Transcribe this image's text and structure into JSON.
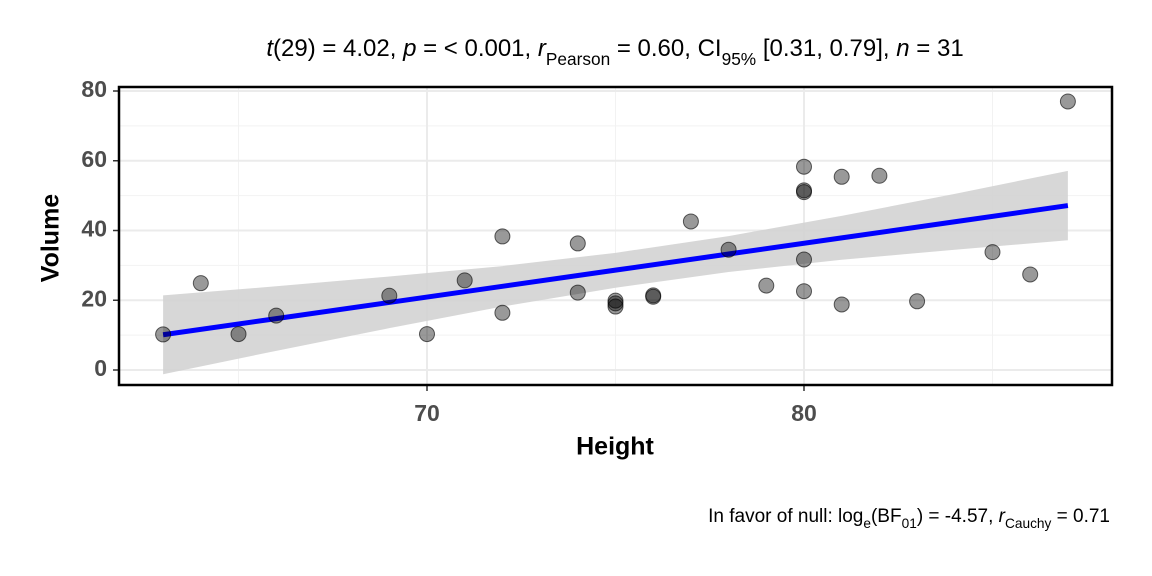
{
  "chart_data": {
    "type": "scatter",
    "title_parts": [
      {
        "text": "t",
        "italic": true
      },
      {
        "text": "(29) = 4.02, "
      },
      {
        "text": "p",
        "italic": true
      },
      {
        "text": " = < 0.001, "
      },
      {
        "text": "r",
        "italic": true
      },
      {
        "text": "Pearson",
        "sub": true
      },
      {
        "text": " = 0.60, CI"
      },
      {
        "text": "95%",
        "sub": true
      },
      {
        "text": " [0.31, 0.79], "
      },
      {
        "text": "n",
        "italic": true
      },
      {
        "text": " = 31"
      }
    ],
    "caption_parts": [
      {
        "text": "In favor of null: log"
      },
      {
        "text": "e",
        "sub": true
      },
      {
        "text": "(BF"
      },
      {
        "text": "01",
        "sub": true
      },
      {
        "text": ") = -4.57, "
      },
      {
        "text": "r",
        "italic": true
      },
      {
        "text": "Cauchy",
        "sub": true
      },
      {
        "text": " = 0.71"
      }
    ],
    "x_label": "Height",
    "y_label": "Volume",
    "x": [
      70,
      65,
      63,
      72,
      81,
      83,
      66,
      75,
      80,
      75,
      79,
      76,
      76,
      69,
      75,
      74,
      85,
      86,
      71,
      64,
      78,
      80,
      74,
      72,
      77,
      81,
      82,
      80,
      80,
      80,
      87
    ],
    "values": [
      10.3,
      10.3,
      10.2,
      16.4,
      18.8,
      19.7,
      15.6,
      18.2,
      22.6,
      19.9,
      24.2,
      21.0,
      21.4,
      21.3,
      19.1,
      22.2,
      33.8,
      27.4,
      25.7,
      24.9,
      34.5,
      31.7,
      36.3,
      38.3,
      42.6,
      55.4,
      55.7,
      58.3,
      51.5,
      51.0,
      77.0
    ],
    "color": "#000000",
    "fit": {
      "color": "#0000ff",
      "band_color": "#d3d3d3",
      "x": [
        63,
        66,
        69,
        72,
        75,
        78,
        81,
        84,
        87
      ],
      "values": [
        10.11,
        14.74,
        19.37,
        24.0,
        28.63,
        33.26,
        37.89,
        42.52,
        47.15
      ],
      "lower": [
        -1.2,
        5.5,
        12.0,
        18.2,
        23.6,
        28.1,
        31.6,
        34.5,
        37.2
      ],
      "upper": [
        21.4,
        24.0,
        26.8,
        29.8,
        33.6,
        38.4,
        44.2,
        50.5,
        57.1
      ]
    },
    "xlim": [
      61.83,
      88.17
    ],
    "ylim": [
      -4.3,
      81.15
    ],
    "xticks": [
      70,
      80
    ],
    "yticks": [
      0,
      20,
      40,
      60,
      80
    ],
    "xminor": [
      65,
      75,
      85
    ],
    "yminor": [
      10,
      30,
      50,
      70
    ],
    "grid": true
  }
}
